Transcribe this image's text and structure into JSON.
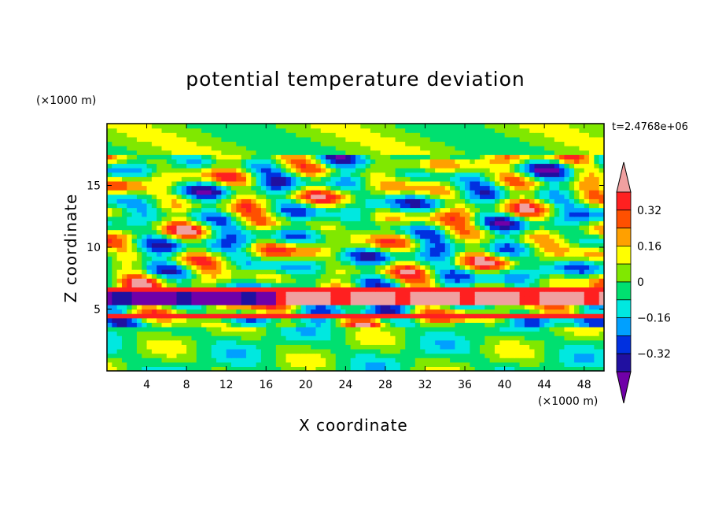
{
  "chart_data": {
    "type": "heatmap",
    "title": "potential temperature deviation",
    "xlabel": "X coordinate",
    "ylabel": "Z coordinate",
    "x_unit_label": "(×1000 m)",
    "y_unit_label": "(×1000 m)",
    "time_label": "t=2.4768e+06",
    "xlim": [
      0,
      50
    ],
    "ylim": [
      0,
      20
    ],
    "x_ticks": [
      4,
      8,
      12,
      16,
      20,
      24,
      28,
      32,
      36,
      40,
      44,
      48
    ],
    "y_ticks": [
      5,
      10,
      15
    ],
    "colorbar": {
      "levels": [
        -0.4,
        -0.32,
        -0.24,
        -0.16,
        -0.08,
        0,
        0.08,
        0.16,
        0.24,
        0.32,
        0.4
      ],
      "tick_labels": [
        "0.32",
        "0.16",
        "0",
        "−0.16",
        "−0.32"
      ],
      "tick_values": [
        0.32,
        0.16,
        0,
        -0.16,
        -0.32
      ],
      "colors": [
        "#7000a8",
        "#2010a0",
        "#0030e0",
        "#00a0ff",
        "#00e8e0",
        "#00e070",
        "#80e800",
        "#ffff00",
        "#ffa000",
        "#ff5000",
        "#ff2020",
        "#f0a0a0"
      ],
      "extend": "both"
    }
  }
}
